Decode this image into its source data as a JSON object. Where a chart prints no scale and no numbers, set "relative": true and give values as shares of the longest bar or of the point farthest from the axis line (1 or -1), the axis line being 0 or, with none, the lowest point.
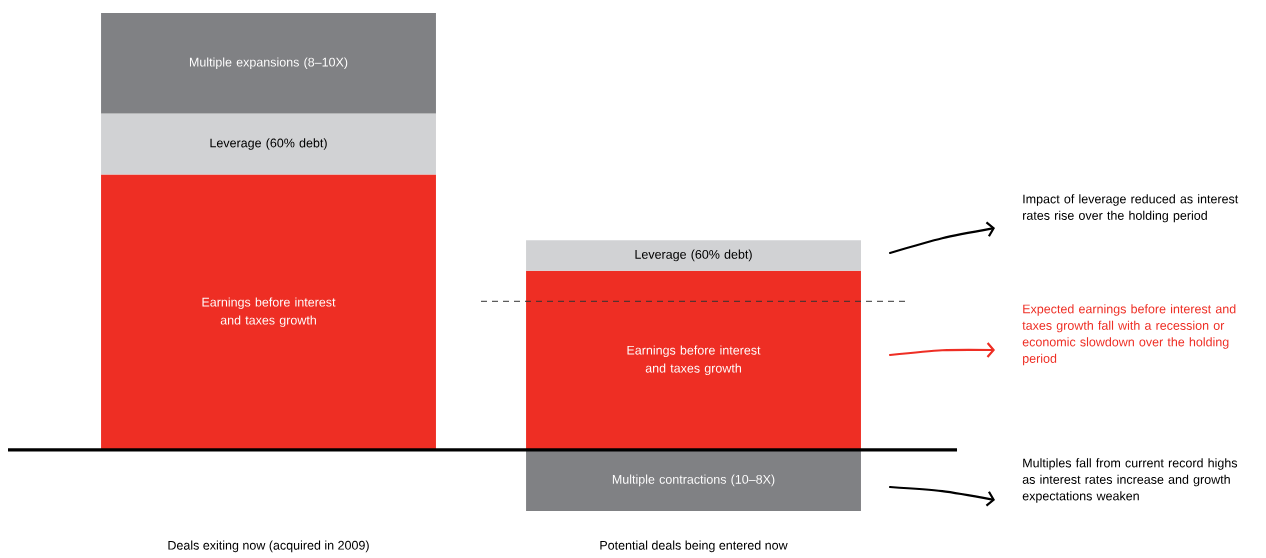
{
  "chart_data": {
    "type": "bar",
    "stacked": true,
    "relative": true,
    "categories": [
      "Deals exiting now (acquired in 2009)",
      "Potential deals being entered now"
    ],
    "series": [
      {
        "name": "Earnings before interest and taxes growth",
        "color": "#ee2e24",
        "values": [
          0.63,
          0.41
        ]
      },
      {
        "name": "Leverage (60% debt)",
        "color": "#d1d2d4",
        "values": [
          0.14,
          0.07
        ]
      },
      {
        "name": "Multiple expansions (8–10X)",
        "color": "#808184",
        "values": [
          0.23,
          null
        ]
      },
      {
        "name": "Multiple contractions (10–8X)",
        "color": "#808184",
        "values": [
          null,
          -0.14
        ]
      }
    ],
    "ref_lines": [
      {
        "axis": "y",
        "value": 0.34,
        "line_style": "dashed",
        "color": "#333333"
      }
    ],
    "annotations": [
      "Impact of leverage reduced as interest rates rise over the holding period",
      "Expected earnings before interest and taxes growth fall with a recession or economic slowdown over the holding period",
      "Multiples fall from current record highs as interest rates increase and growth expectations weaken"
    ]
  }
}
